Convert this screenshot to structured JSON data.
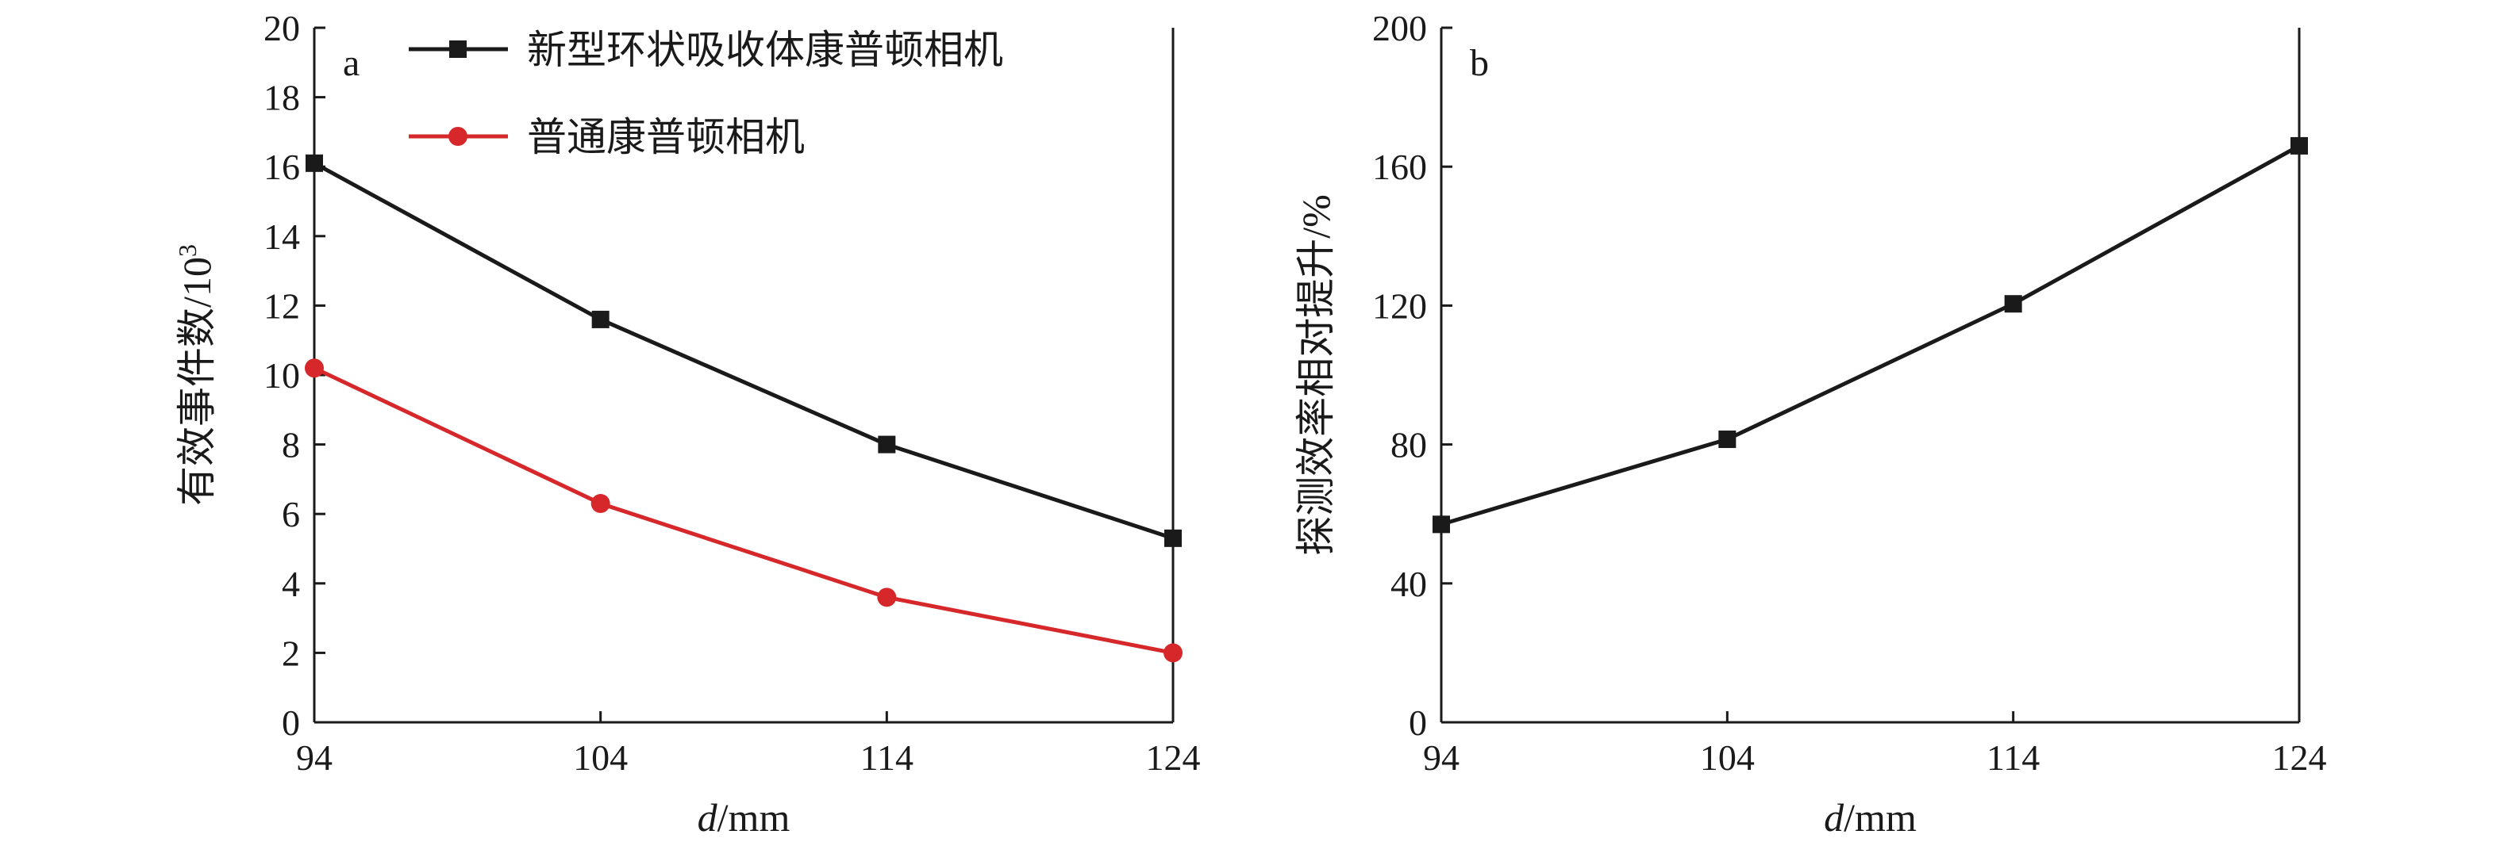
{
  "chart_data": [
    {
      "type": "line",
      "panel_label": "a",
      "title": "",
      "xlabel_italic": "d",
      "xlabel_rest": "/mm",
      "ylabel_main": "有效事件数/10",
      "ylabel_sup": "3",
      "x": [
        94,
        104,
        114,
        124
      ],
      "x_tick_labels": [
        "94",
        "104",
        "114",
        "124"
      ],
      "xlim": [
        94,
        124
      ],
      "ylim": [
        0,
        20
      ],
      "y_ticks": [
        0,
        2,
        4,
        6,
        8,
        10,
        12,
        14,
        16,
        18,
        20
      ],
      "grid": false,
      "legend_position": "top",
      "series": [
        {
          "name": "新型环状吸收体康普顿相机",
          "values": [
            16.1,
            11.6,
            8.0,
            5.3
          ],
          "color": "#1a1a1a",
          "marker": "square"
        },
        {
          "name": "普通康普顿相机",
          "values": [
            10.2,
            6.3,
            3.6,
            2.0
          ],
          "color": "#d6282b",
          "marker": "circle"
        }
      ]
    },
    {
      "type": "line",
      "panel_label": "b",
      "title": "",
      "xlabel_italic": "d",
      "xlabel_rest": "/mm",
      "ylabel_main": "探测效率相对提升/%",
      "ylabel_sup": "",
      "x": [
        94,
        104,
        114,
        124
      ],
      "x_tick_labels": [
        "94",
        "104",
        "114",
        "124"
      ],
      "xlim": [
        94,
        124
      ],
      "ylim": [
        0,
        200
      ],
      "y_ticks": [
        0,
        40,
        80,
        120,
        160,
        200
      ],
      "grid": false,
      "legend_position": "none",
      "series": [
        {
          "values": [
            57,
            81.5,
            120.5,
            166
          ],
          "color": "#1a1a1a",
          "marker": "square"
        }
      ]
    }
  ]
}
